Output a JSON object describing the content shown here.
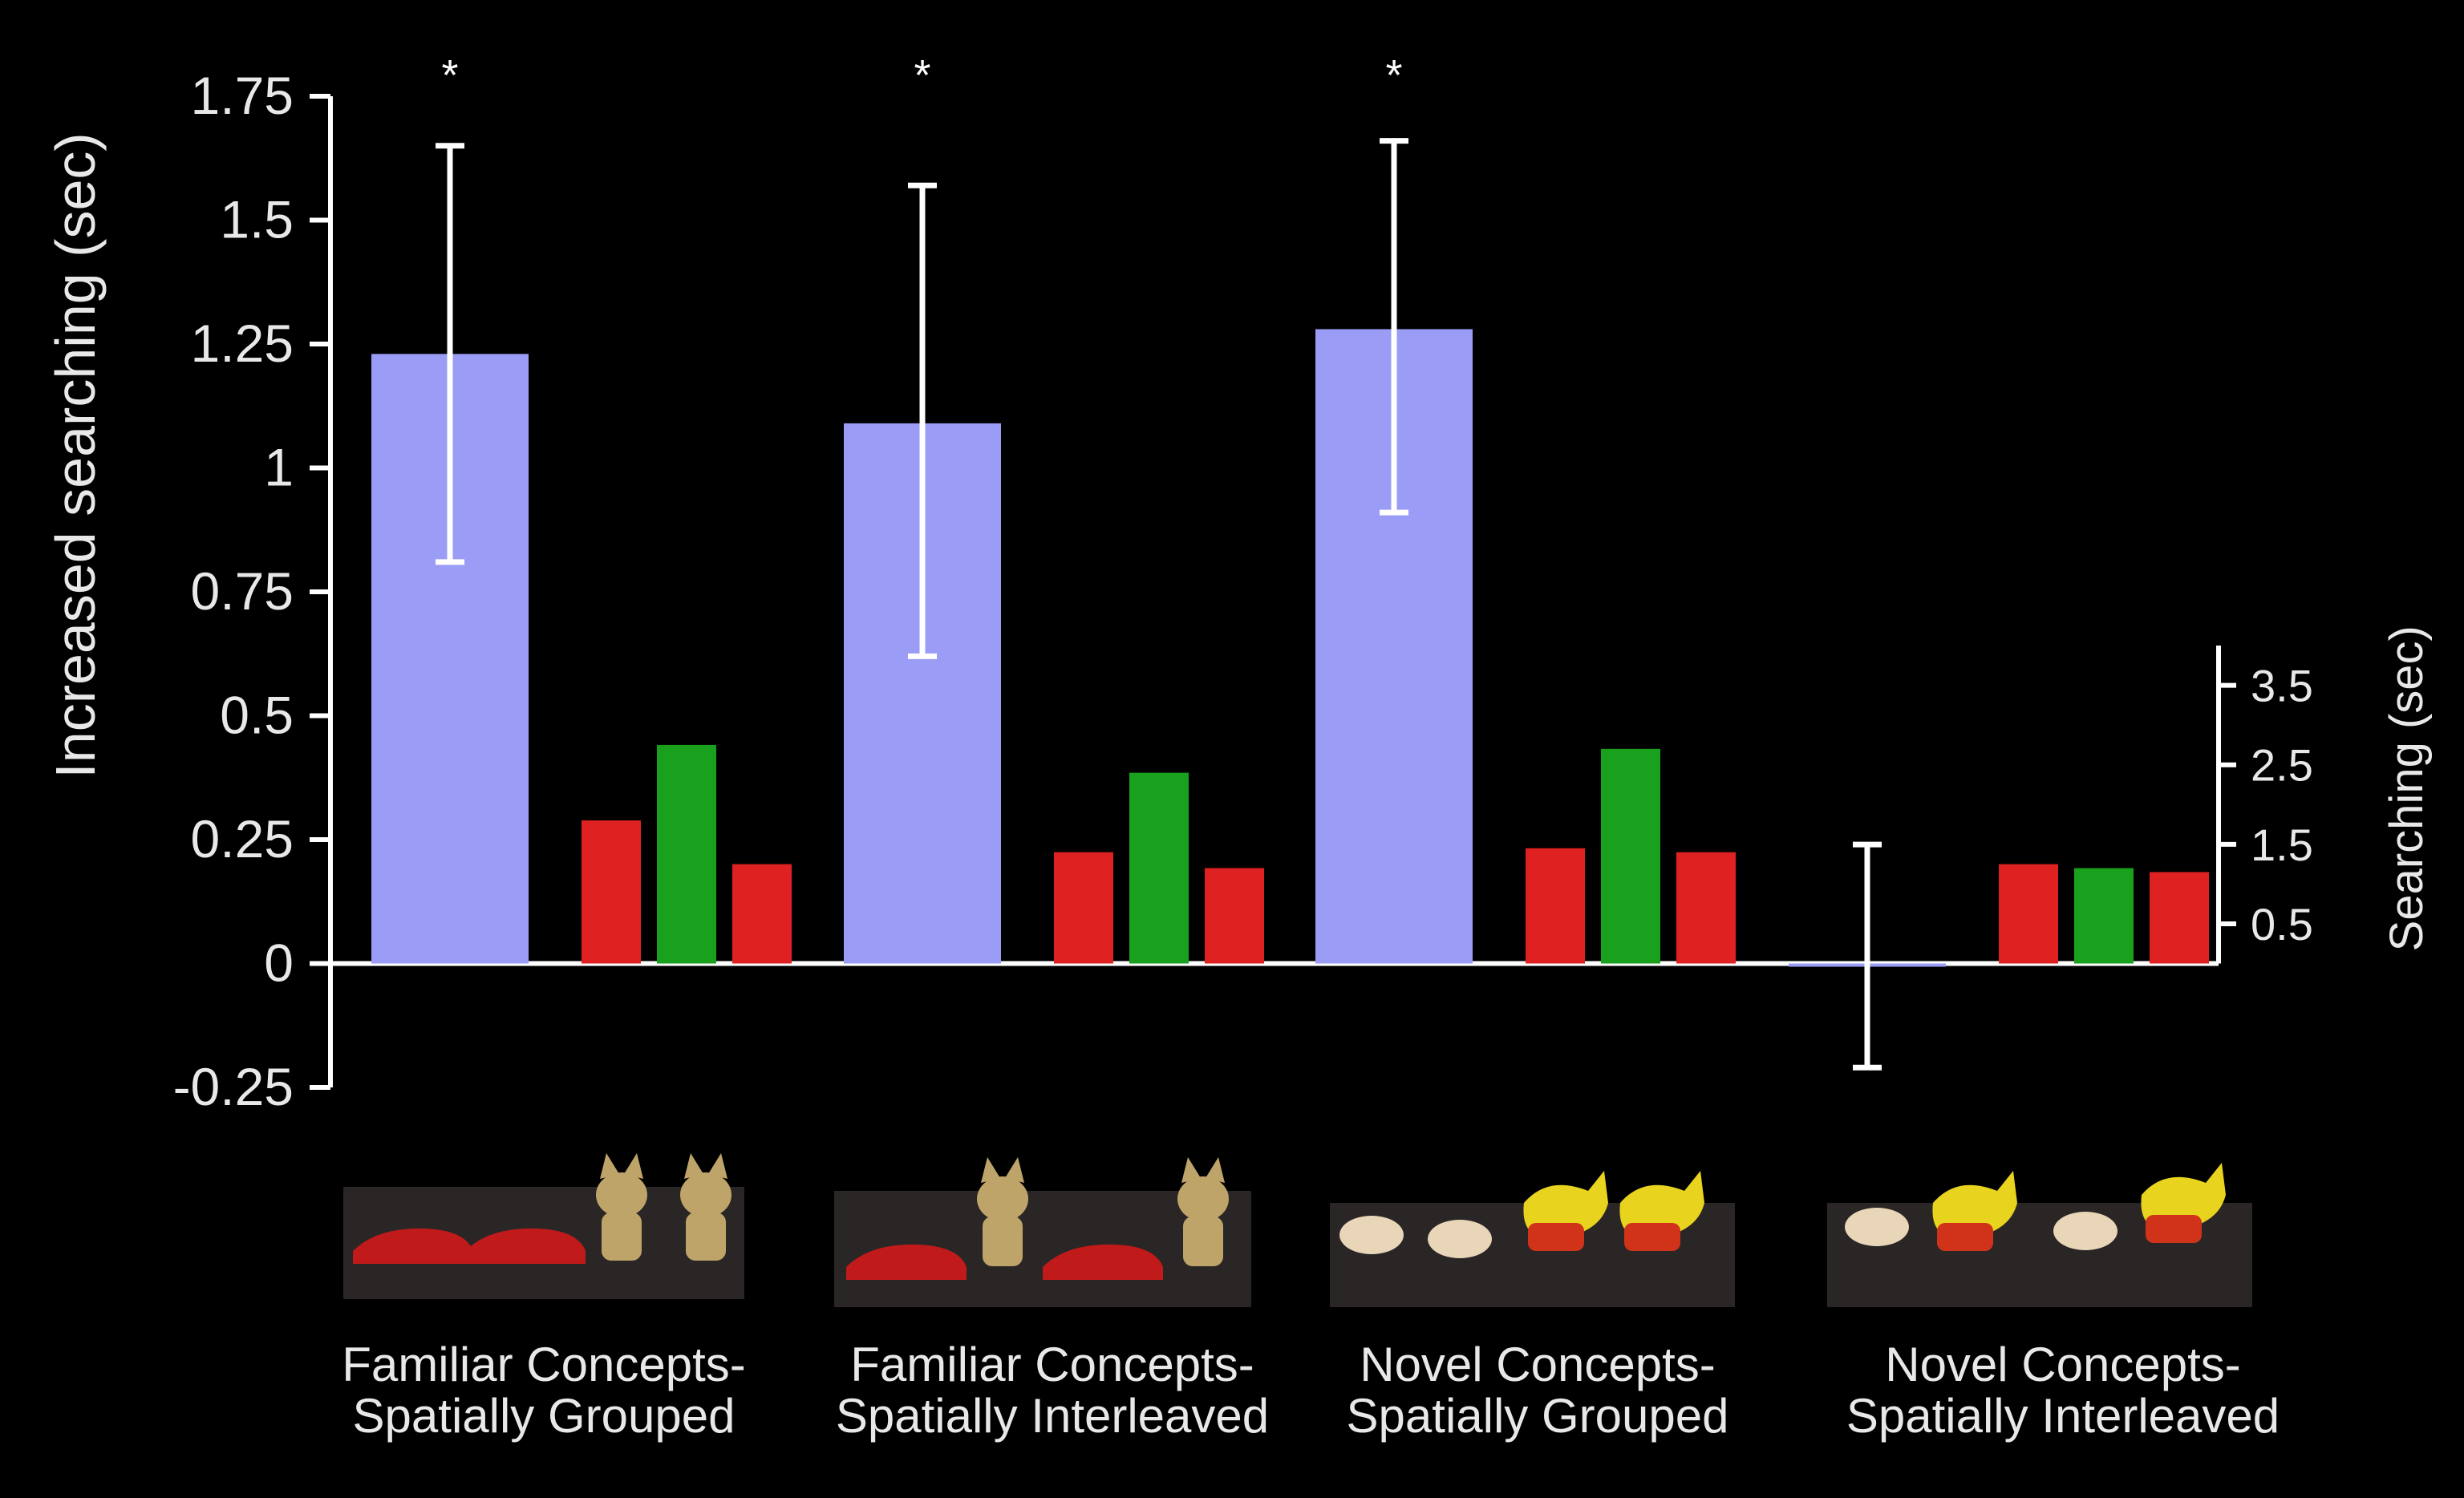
{
  "chart_data": {
    "type": "bar",
    "categories": [
      "Familiar Concepts-\nSpatially Grouped",
      "Familiar Concepts-\nSpatially Interleaved",
      "Novel Concepts-\nSpatially Grouped",
      "Novel Concepts-\nSpatially Interleaved"
    ],
    "ylabel": "Increased searching (sec)",
    "y2label": "Searching (sec)",
    "ylim": [
      -0.25,
      1.75
    ],
    "yticks": [
      "1.75",
      "1.5",
      "1.25",
      "1",
      "0.75",
      "0.5",
      "0.25",
      "0",
      "-0.25"
    ],
    "ytick_values": [
      1.75,
      1.5,
      1.25,
      1,
      0.75,
      0.5,
      0.25,
      0,
      -0.25
    ],
    "y2ticks": [
      "3.5",
      "2.5",
      "1.5",
      "0.5"
    ],
    "y2tick_values": [
      3.5,
      2.5,
      1.5,
      0.5
    ],
    "y2lim": [
      0,
      4.0
    ],
    "increased_searching": {
      "color": "#9a9cf6",
      "values": [
        1.23,
        1.09,
        1.28,
        0.0
      ],
      "error_low": [
        0.81,
        0.62,
        0.91,
        -0.21
      ],
      "error_high": [
        1.65,
        1.57,
        1.66,
        0.24
      ],
      "significance": [
        "*",
        "*",
        "*",
        ""
      ]
    },
    "searching_series": [
      {
        "color": "#e02121",
        "values": [
          1.8,
          1.4,
          1.45,
          1.25
        ]
      },
      {
        "color": "#19a11d",
        "values": [
          2.75,
          2.4,
          2.7,
          1.2
        ]
      },
      {
        "color": "#e02121",
        "values": [
          1.25,
          1.2,
          1.4,
          1.15
        ]
      }
    ],
    "grid": false,
    "legend": "none"
  }
}
